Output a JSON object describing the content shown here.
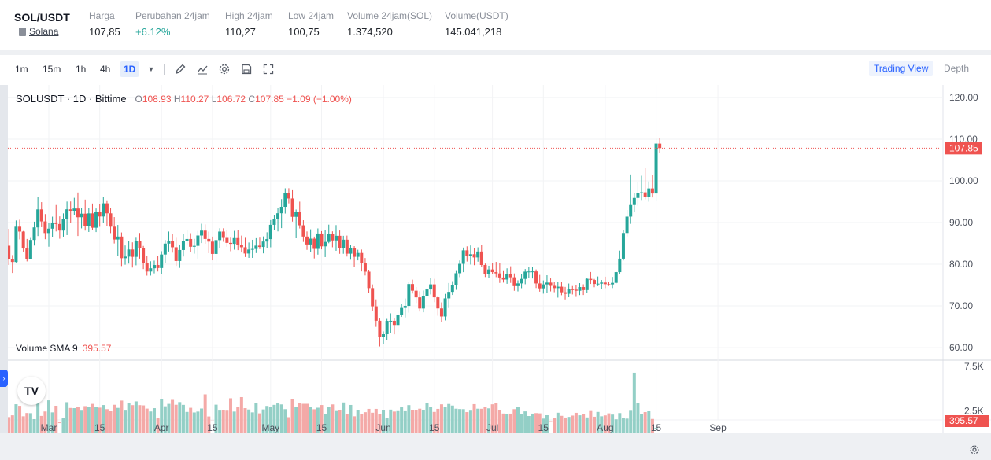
{
  "ticker": {
    "pair": "SOL/USDT",
    "coin": "Solana",
    "stats": [
      {
        "label": "Harga",
        "value": "107,85"
      },
      {
        "label": "Perubahan 24jam",
        "value": "+6.12%"
      },
      {
        "label": "High 24jam",
        "value": "110,27"
      },
      {
        "label": "Low 24jam",
        "value": "100,75"
      },
      {
        "label": "Volume 24jam(SOL)",
        "value": "1.374,520"
      },
      {
        "label": "Volume(USDT)",
        "value": "145.041,218"
      }
    ]
  },
  "toolbar": {
    "timeframes": [
      "1m",
      "15m",
      "1h",
      "4h",
      "1D"
    ],
    "active_timeframe": "1D",
    "tools": [
      "pencil-icon",
      "indicator-icon",
      "settings-icon",
      "save-icon",
      "fullscreen-icon"
    ],
    "view_tabs": [
      "Trading View",
      "Depth"
    ],
    "active_view": "Trading View"
  },
  "legend": {
    "title": "SOLUSDT · 1D · Bittime",
    "o_label": "O",
    "o": "108.93",
    "h_label": "H",
    "h": "110.27",
    "l_label": "L",
    "l": "106.72",
    "c_label": "C",
    "c": "107.85",
    "change": "−1.09 (−1.00%)",
    "volume_label": "Volume SMA 9",
    "volume_value": "395.57"
  },
  "tv_logo": "TV",
  "chart_data": {
    "type": "candlestick",
    "price_axis": {
      "ticks": [
        "120.00",
        "110.00",
        "100.00",
        "90.00",
        "80.00",
        "70.00",
        "60.00"
      ],
      "ylim": [
        57,
        123
      ],
      "last_price": "107.85"
    },
    "volume_axis": {
      "ticks": [
        "7.5K",
        "2.5K"
      ],
      "ylim": [
        0,
        7.5
      ],
      "last_label": "395.57"
    },
    "x_ticks": [
      "Mar",
      "15",
      "Apr",
      "15",
      "May",
      "15",
      "Jun",
      "15",
      "Jul",
      "15",
      "Aug",
      "15",
      "Sep"
    ],
    "x_tick_days": [
      0,
      14,
      31,
      45,
      61,
      75,
      92,
      106,
      122,
      136,
      153,
      167,
      184
    ],
    "first_candle_day": -12,
    "candles": [
      [
        88.99,
        90.4,
        83.14,
        84.44
      ],
      [
        84.44,
        88.48,
        79.83,
        81.2
      ],
      [
        81.2,
        82.19,
        77.91,
        80.54
      ],
      [
        80.54,
        90.5,
        80.41,
        89.0
      ],
      [
        89.0,
        90.68,
        85.96,
        87.84
      ],
      [
        87.84,
        87.98,
        83.03,
        83.77
      ],
      [
        83.77,
        86.06,
        80.68,
        81.3
      ],
      [
        81.3,
        86.31,
        81.16,
        85.82
      ],
      [
        85.82,
        90.21,
        84.48,
        88.83
      ],
      [
        88.83,
        96.18,
        86.76,
        93.15
      ],
      [
        93.15,
        94.89,
        88.88,
        90.27
      ],
      [
        90.27,
        92.03,
        86.0,
        87.48
      ],
      [
        87.48,
        89.89,
        84.2,
        88.53
      ],
      [
        88.53,
        91.41,
        86.54,
        89.94
      ],
      [
        89.94,
        94.2,
        87.87,
        89.65
      ],
      [
        89.65,
        91.48,
        86.12,
        88.08
      ],
      [
        88.08,
        92.2,
        86.62,
        90.78
      ],
      [
        90.78,
        95.03,
        86.99,
        93.17
      ],
      [
        93.17,
        95.05,
        89.99,
        92.83
      ],
      [
        92.83,
        95.92,
        91.74,
        93.36
      ],
      [
        93.36,
        97.2,
        86.77,
        91.27
      ],
      [
        91.27,
        93.42,
        88.6,
        92.13
      ],
      [
        92.13,
        95.5,
        88.07,
        89.07
      ],
      [
        89.07,
        93.54,
        87.74,
        92.2
      ],
      [
        92.2,
        94.56,
        88.12,
        88.75
      ],
      [
        88.75,
        93.37,
        87.72,
        92.62
      ],
      [
        92.62,
        94.38,
        88.98,
        91.45
      ],
      [
        91.45,
        96.07,
        89.97,
        94.6
      ],
      [
        94.6,
        95.33,
        89.08,
        92.21
      ],
      [
        92.21,
        93.48,
        87.47,
        89.0
      ],
      [
        89.0,
        91.31,
        84.98,
        85.93
      ],
      [
        85.93,
        89.42,
        82.03,
        86.64
      ],
      [
        86.64,
        87.63,
        79.56,
        81.45
      ],
      [
        81.45,
        84.5,
        79.88,
        81.83
      ],
      [
        81.83,
        85.5,
        80.15,
        83.53
      ],
      [
        83.53,
        85.25,
        79.2,
        81.77
      ],
      [
        81.77,
        86.36,
        79.74,
        85.6
      ],
      [
        85.6,
        87.5,
        81.35,
        83.96
      ],
      [
        83.96,
        84.39,
        78.84,
        80.35
      ],
      [
        80.35,
        81.89,
        77.27,
        78.25
      ],
      [
        78.25,
        80.71,
        77.28,
        79.03
      ],
      [
        79.03,
        80.87,
        77.81,
        79.81
      ],
      [
        79.81,
        82.05,
        78.26,
        79.09
      ],
      [
        79.09,
        83.13,
        77.61,
        82.33
      ],
      [
        82.33,
        85.81,
        80.29,
        84.95
      ],
      [
        84.95,
        87.85,
        83.05,
        85.57
      ],
      [
        85.57,
        87.35,
        82.78,
        84.07
      ],
      [
        84.07,
        86.34,
        79.6,
        80.77
      ],
      [
        80.77,
        84.73,
        79.12,
        83.41
      ],
      [
        83.41,
        87.3,
        81.85,
        85.66
      ],
      [
        85.66,
        88.28,
        84.48,
        86.05
      ],
      [
        86.05,
        87.45,
        83.01,
        84.19
      ],
      [
        84.19,
        86.09,
        82.54,
        84.41
      ],
      [
        84.41,
        87.99,
        81.36,
        86.89
      ],
      [
        86.89,
        89.72,
        85.08,
        88.07
      ],
      [
        88.07,
        89.55,
        84.92,
        86.06
      ],
      [
        86.06,
        87.83,
        82.65,
        85.42
      ],
      [
        85.42,
        86.63,
        80.94,
        82.47
      ],
      [
        82.47,
        86.59,
        80.48,
        85.78
      ],
      [
        85.78,
        88.63,
        83.85,
        87.84
      ],
      [
        87.84,
        88.62,
        85.38,
        86.32
      ],
      [
        86.32,
        88.27,
        84.19,
        85.12
      ],
      [
        85.12,
        86.37,
        83.11,
        84.89
      ],
      [
        84.89,
        88.01,
        83.49,
        86.27
      ],
      [
        86.27,
        88.3,
        83.38,
        84.72
      ],
      [
        84.72,
        86.87,
        82.82,
        84.07
      ],
      [
        84.07,
        86.34,
        81.73,
        82.57
      ],
      [
        82.57,
        85.21,
        81.52,
        83.52
      ],
      [
        83.52,
        85.86,
        81.52,
        83.66
      ],
      [
        83.66,
        86.25,
        82.68,
        84.46
      ],
      [
        84.46,
        86.38,
        83.63,
        84.14
      ],
      [
        84.14,
        86.67,
        82.61,
        85.44
      ],
      [
        85.44,
        87.67,
        83.88,
        86.03
      ],
      [
        86.03,
        90.59,
        84.06,
        89.45
      ],
      [
        89.45,
        91.83,
        88.24,
        90.88
      ],
      [
        90.88,
        93.5,
        87.88,
        92.23
      ],
      [
        92.23,
        95.61,
        88.66,
        93.77
      ],
      [
        93.77,
        98.21,
        92.16,
        97.03
      ],
      [
        97.03,
        98.23,
        94.59,
        95.76
      ],
      [
        95.76,
        97.94,
        90.23,
        91.37
      ],
      [
        91.37,
        93.12,
        86.23,
        92.5
      ],
      [
        92.5,
        95.01,
        88.57,
        89.33
      ],
      [
        89.33,
        90.56,
        85.35,
        86.64
      ],
      [
        86.64,
        87.87,
        83.44,
        84.74
      ],
      [
        84.74,
        88.38,
        82.96,
        86.13
      ],
      [
        86.13,
        86.63,
        81.39,
        83.68
      ],
      [
        83.68,
        88.59,
        82.31,
        87.37
      ],
      [
        87.37,
        87.96,
        83.57,
        84.29
      ],
      [
        84.29,
        88.2,
        81.71,
        85.35
      ],
      [
        85.35,
        89.49,
        85.04,
        87.36
      ],
      [
        87.36,
        87.89,
        84.07,
        85.71
      ],
      [
        85.71,
        89.38,
        83.22,
        86.82
      ],
      [
        86.82,
        88.1,
        82.5,
        83.9
      ],
      [
        83.9,
        86.82,
        82.51,
        85.88
      ],
      [
        85.88,
        86.87,
        81.84,
        82.53
      ],
      [
        82.53,
        84.56,
        81.08,
        83.94
      ],
      [
        83.94,
        84.34,
        79.36,
        81.78
      ],
      [
        81.78,
        83.47,
        80.93,
        82.7
      ],
      [
        82.7,
        83.52,
        78.28,
        80.35
      ],
      [
        80.35,
        81.49,
        77.31,
        78.22
      ],
      [
        78.22,
        78.61,
        73.04,
        74.28
      ],
      [
        74.28,
        75.17,
        68.71,
        69.9
      ],
      [
        69.9,
        71.58,
        64.99,
        66.45
      ],
      [
        66.45,
        66.98,
        60.29,
        62.58
      ],
      [
        62.58,
        63.9,
        60.93,
        63.22
      ],
      [
        63.22,
        66.89,
        61.79,
        66.42
      ],
      [
        66.42,
        68.23,
        63.44,
        66.44
      ],
      [
        66.44,
        66.98,
        63.2,
        65.44
      ],
      [
        65.44,
        68.93,
        63.78,
        67.94
      ],
      [
        67.94,
        70.56,
        67.36,
        69.52
      ],
      [
        69.52,
        71.79,
        67.24,
        70.0
      ],
      [
        70.0,
        75.79,
        68.39,
        75.26
      ],
      [
        75.26,
        76.3,
        72.98,
        73.66
      ],
      [
        73.66,
        74.54,
        70.71,
        72.06
      ],
      [
        72.06,
        73.53,
        68.66,
        69.38
      ],
      [
        69.38,
        73.7,
        68.48,
        72.37
      ],
      [
        72.37,
        74.13,
        70.42,
        73.96
      ],
      [
        73.96,
        76.78,
        72.76,
        75.18
      ],
      [
        75.18,
        76.5,
        70.9,
        72.07
      ],
      [
        72.07,
        72.38,
        67.65,
        69.4
      ],
      [
        69.4,
        70.85,
        66.17,
        67.47
      ],
      [
        67.47,
        72.9,
        66.53,
        71.81
      ],
      [
        71.81,
        75.5,
        69.49,
        73.38
      ],
      [
        73.38,
        75.94,
        72.64,
        75.05
      ],
      [
        75.05,
        78.38,
        73.87,
        77.84
      ],
      [
        77.84,
        80.91,
        76.91,
        80.1
      ],
      [
        80.1,
        84.0,
        78.1,
        83.33
      ],
      [
        83.33,
        84.29,
        80.64,
        82.0
      ],
      [
        82.0,
        84.5,
        79.92,
        82.4
      ],
      [
        82.4,
        83.79,
        79.77,
        81.63
      ],
      [
        81.63,
        84.06,
        80.61,
        83.05
      ],
      [
        83.05,
        84.59,
        79.29,
        79.82
      ],
      [
        79.82,
        80.16,
        76.93,
        77.62
      ],
      [
        77.62,
        79.64,
        76.69,
        78.75
      ],
      [
        78.75,
        80.38,
        77.69,
        78.11
      ],
      [
        78.11,
        80.56,
        76.91,
        77.8
      ],
      [
        77.8,
        80.23,
        75.52,
        76.82
      ],
      [
        76.82,
        78.35,
        75.59,
        76.33
      ],
      [
        76.33,
        79.02,
        75.31,
        77.68
      ],
      [
        77.68,
        79.51,
        75.53,
        76.87
      ],
      [
        76.87,
        77.8,
        73.64,
        74.76
      ],
      [
        74.76,
        76.15,
        73.49,
        75.41
      ],
      [
        75.41,
        77.63,
        74.26,
        76.48
      ],
      [
        76.48,
        78.85,
        75.21,
        78.23
      ],
      [
        78.23,
        79.34,
        76.7,
        78.26
      ],
      [
        78.26,
        79.3,
        76.58,
        78.28
      ],
      [
        78.28,
        78.75,
        74.3,
        75.4
      ],
      [
        75.4,
        77.44,
        73.43,
        74.22
      ],
      [
        74.22,
        76.12,
        72.95,
        75.17
      ],
      [
        75.17,
        77.36,
        73.04,
        75.6
      ],
      [
        75.6,
        76.6,
        73.49,
        74.82
      ],
      [
        74.82,
        75.77,
        73.3,
        74.28
      ],
      [
        74.28,
        75.76,
        72.0,
        74.62
      ],
      [
        74.62,
        75.75,
        72.58,
        73.28
      ],
      [
        73.28,
        74.57,
        71.56,
        72.92
      ],
      [
        72.92,
        75.38,
        72.08,
        74.01
      ],
      [
        74.01,
        74.78,
        72.76,
        73.91
      ],
      [
        73.91,
        75.02,
        72.17,
        73.65
      ],
      [
        73.65,
        75.47,
        72.61,
        74.53
      ],
      [
        74.53,
        75.2,
        72.63,
        73.81
      ],
      [
        73.81,
        76.66,
        73.07,
        76.5
      ],
      [
        76.5,
        78.14,
        75.28,
        76.22
      ],
      [
        76.22,
        76.47,
        74.48,
        75.28
      ],
      [
        75.28,
        77.06,
        74.75,
        75.35
      ],
      [
        75.35,
        76.23,
        74.01,
        75.61
      ],
      [
        75.61,
        77.01,
        74.27,
        75.22
      ],
      [
        75.22,
        75.81,
        74.79,
        75.17
      ],
      [
        75.17,
        76.96,
        74.29,
        75.54
      ],
      [
        75.54,
        78.18,
        75.39,
        78.11
      ],
      [
        78.11,
        83.27,
        77.68,
        81.34
      ],
      [
        81.34,
        88.24,
        80.91,
        87.5
      ],
      [
        87.5,
        93.03,
        86.65,
        91.42
      ],
      [
        91.42,
        101.53,
        89.69,
        94.2
      ],
      [
        94.2,
        97.0,
        92.44,
        95.89
      ],
      [
        95.89,
        99.68,
        94.02,
        97.01
      ],
      [
        97.01,
        101.22,
        95.41,
        97.24
      ],
      [
        97.24,
        103.01,
        95.56,
        96.05
      ],
      [
        96.05,
        99.86,
        95.0,
        98.18
      ],
      [
        98.18,
        101.38,
        96.01,
        96.96
      ],
      [
        96.96,
        110.1,
        95.12,
        108.94
      ],
      [
        108.93,
        110.27,
        106.72,
        107.85
      ]
    ],
    "volumes": [
      1.52,
      1.82,
      2.02,
      3.26,
      3.08,
      1.91,
      2.28,
      2.26,
      1.59,
      3.95,
      1.95,
      2.45,
      3.7,
      2.35,
      3.09,
      1.23,
      1.7,
      3.49,
      2.84,
      2.82,
      2.97,
      2.54,
      3.05,
      2.99,
      3.3,
      2.98,
      2.88,
      3.17,
      2.71,
      2.47,
      3.2,
      2.85,
      3.67,
      2.55,
      3.4,
      3.16,
      3.58,
      3.16,
      3.13,
      2.77,
      2.45,
      2.82,
      1.74,
      3.81,
      3.03,
      3.3,
      3.75,
      3.2,
      3.5,
      3.19,
      2.4,
      2.86,
      2.34,
      2.44,
      2.78,
      4.37,
      1.89,
      1.43,
      3.21,
      2.55,
      2.62,
      2.54,
      3.93,
      2.44,
      2.97,
      4.06,
      2.82,
      2.67,
      2.35,
      3.37,
      2.24,
      2.68,
      3.07,
      2.94,
      3.19,
      3.35,
      3.24,
      2.71,
      1.81,
      3.85,
      2.98,
      3.38,
      3.31,
      3.31,
      2.91,
      2.7,
      2.87,
      3.17,
      2.2,
      2.98,
      3.24,
      2.5,
      2.63,
      3.46,
      2.16,
      3.18,
      1.91,
      2.56,
      2.12,
      2.37,
      2.74,
      2.31,
      2.74,
      2.14,
      2.62,
      1.72,
      2.66,
      2.44,
      2.49,
      2.91,
      2.48,
      3.16,
      2.57,
      2.57,
      2.76,
      2.65,
      3.38,
      2.99,
      2.4,
      2.74,
      3.25,
      2.94,
      3.29,
      3.11,
      2.76,
      2.72,
      2.71,
      2.38,
      2.54,
      3.27,
      2.76,
      2.75,
      2.97,
      2.8,
      3.25,
      3.43,
      2.57,
      2.22,
      2.12,
      2.21,
      2.71,
      2.91,
      2.15,
      2.46,
      1.94,
      2.21,
      2.27,
      2.24,
      1.65,
      2.03,
      1.37,
      1.71,
      2.31,
      1.96,
      1.77,
      1.84,
      1.99,
      2.3,
      2.02,
      2.16,
      1.78,
      2.5,
      1.86,
      2.4,
      1.91,
      2.01,
      2.24,
      2.1,
      1.57,
      2.27,
      1.69,
      1.65,
      2.53,
      6.8,
      3.43,
      2.2,
      2.38,
      2.47,
      1.61,
      0.62
    ],
    "colors": {
      "up": "#26a69a",
      "down": "#ef5350",
      "vol_up": "#93cfc6",
      "vol_down": "#f4a9a7"
    }
  }
}
